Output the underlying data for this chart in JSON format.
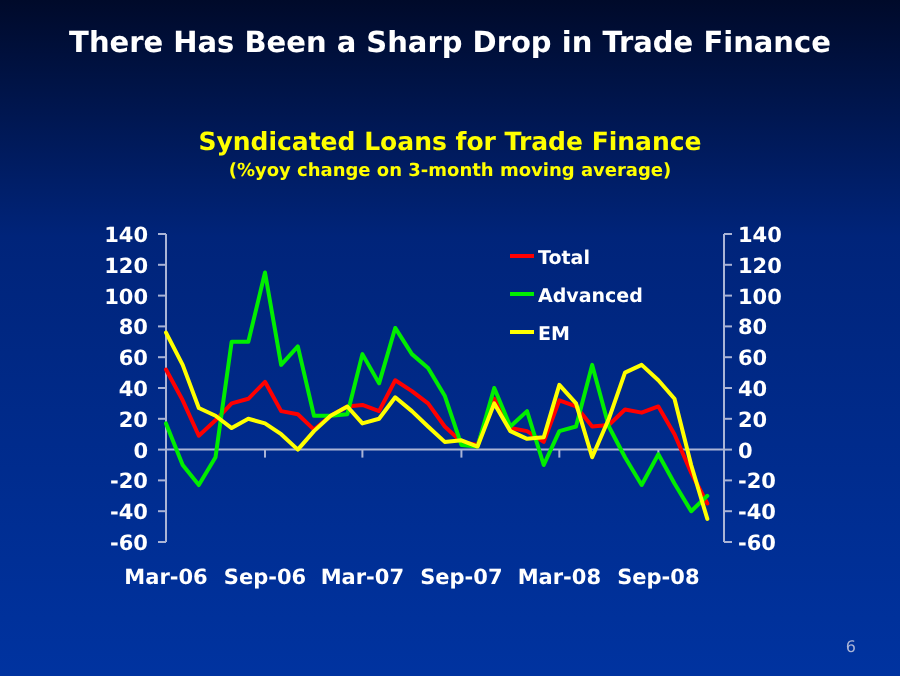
{
  "chart_data": {
    "type": "line",
    "title": "There Has Been a Sharp Drop in Trade Finance",
    "subtitle": "Syndicated Loans for Trade Finance\n(%yoy change on 3-month moving average)",
    "x": [
      "2006-03",
      "2006-04",
      "2006-05",
      "2006-06",
      "2006-07",
      "2006-08",
      "2006-09",
      "2006-10",
      "2006-11",
      "2006-12",
      "2007-01",
      "2007-02",
      "2007-03",
      "2007-04",
      "2007-05",
      "2007-06",
      "2007-07",
      "2007-08",
      "2007-09",
      "2007-10",
      "2007-11",
      "2007-12",
      "2008-01",
      "2008-02",
      "2008-03",
      "2008-04",
      "2008-05",
      "2008-06",
      "2008-07",
      "2008-08",
      "2008-09",
      "2008-10",
      "2008-11",
      "2008-12"
    ],
    "series": [
      {
        "name": "Total",
        "color": "#ff0000",
        "values": [
          52,
          32,
          9,
          19,
          30,
          33,
          44,
          25,
          23,
          13,
          22,
          28,
          29,
          25,
          45,
          38,
          30,
          15,
          5,
          3,
          33,
          14,
          12,
          5,
          32,
          28,
          15,
          16,
          26,
          24,
          28,
          10,
          -15,
          -35
        ]
      },
      {
        "name": "Advanced",
        "color": "#00ee00",
        "values": [
          17,
          -10,
          -23,
          -5,
          70,
          70,
          115,
          55,
          67,
          22,
          22,
          23,
          62,
          43,
          79,
          62,
          53,
          35,
          3,
          2,
          40,
          15,
          25,
          -10,
          12,
          15,
          55,
          15,
          -5,
          -23,
          -3,
          -22,
          -40,
          -30
        ]
      },
      {
        "name": "EM",
        "color": "#ffff00",
        "values": [
          76,
          55,
          27,
          22,
          14,
          20,
          17,
          10,
          0,
          12,
          22,
          28,
          17,
          20,
          34,
          25,
          15,
          5,
          6,
          2,
          30,
          12,
          7,
          8,
          42,
          30,
          -5,
          20,
          50,
          55,
          45,
          33,
          -10,
          -45
        ]
      }
    ],
    "xlim": [
      "2006-03",
      "2009-01"
    ],
    "xticks": [
      {
        "value": "2006-03",
        "label": "Mar-06"
      },
      {
        "value": "2006-09",
        "label": "Sep-06"
      },
      {
        "value": "2007-03",
        "label": "Mar-07"
      },
      {
        "value": "2007-09",
        "label": "Sep-07"
      },
      {
        "value": "2008-03",
        "label": "Mar-08"
      },
      {
        "value": "2008-09",
        "label": "Sep-08"
      }
    ],
    "ylim": [
      -60,
      140
    ],
    "yticks": [
      -60,
      -40,
      -20,
      0,
      20,
      40,
      60,
      80,
      100,
      120,
      140
    ],
    "y2lim": [
      -60,
      140
    ],
    "y2ticks": [
      -60,
      -40,
      -20,
      0,
      20,
      40,
      60,
      80,
      100,
      120,
      140
    ],
    "ref_lines": [
      {
        "axis": "y",
        "value": 0
      }
    ],
    "legend": "top right",
    "grid": false,
    "marker": "none",
    "line_style": "solid",
    "annotations": [
      "6"
    ]
  }
}
